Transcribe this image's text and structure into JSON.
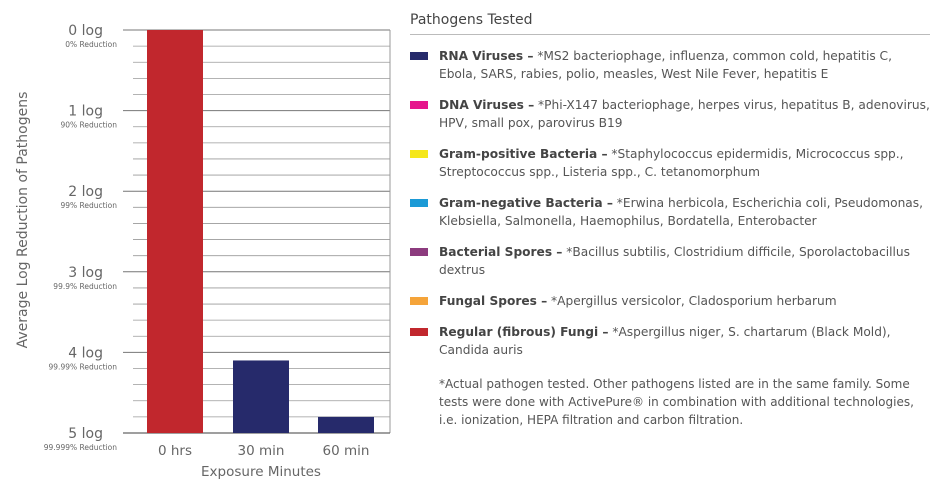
{
  "chart_data": {
    "type": "bar",
    "categories": [
      "0 hrs",
      "30 min",
      "60 min"
    ],
    "values": [
      0,
      4.1,
      4.8
    ],
    "bar_colors": [
      "#c1272d",
      "#262a6b",
      "#262a6b"
    ],
    "ylabel": "Average Log Reduction of Pathogens",
    "xlabel": "Exposure Minutes",
    "ylim": [
      0,
      5
    ],
    "y_inverted": true,
    "y_ticks": [
      {
        "value": 0,
        "label": "0 log",
        "sub": "0% Reduction"
      },
      {
        "value": 1,
        "label": "1 log",
        "sub": "90% Reduction"
      },
      {
        "value": 2,
        "label": "2 log",
        "sub": "99% Reduction"
      },
      {
        "value": 3,
        "label": "3 log",
        "sub": "99.9% Reduction"
      },
      {
        "value": 4,
        "label": "4 log",
        "sub": "99.99% Reduction"
      },
      {
        "value": 5,
        "label": "5 log",
        "sub": "99.999% Reduction"
      }
    ],
    "grid": true
  },
  "legend": {
    "title": "Pathogens Tested",
    "items": [
      {
        "name": "RNA Viruses –",
        "desc": " *MS2 bacteriophage, influenza, common cold, hepatitis C, Ebola, SARS, rabies, polio, measles, West Nile Fever, hepatitis E",
        "color": "#262a6b"
      },
      {
        "name": "DNA Viruses –",
        "desc": " *Phi-X147 bacteriophage, herpes virus, hepatitus B, adenovirus, HPV, small pox, parovirus B19",
        "color": "#e6168c"
      },
      {
        "name": "Gram-positive Bacteria –",
        "desc": " *Staphylococcus epidermidis, Micrococcus spp., Streptococcus spp., Listeria spp., C. tetanomorphum",
        "color": "#f5e71a"
      },
      {
        "name": "Gram-negative Bacteria –",
        "desc": " *Erwina herbicola, Escherichia coli, Pseudomonas, Klebsiella, Salmonella, Haemophilus, Bordatella, Enterobacter",
        "color": "#1b9ad6"
      },
      {
        "name": "Bacterial Spores –",
        "desc": " *Bacillus subtilis, Clostridium difficile, Sporolactobacillus dextrus",
        "color": "#8c3b7e"
      },
      {
        "name": "Fungal Spores –",
        "desc": " *Apergillus versicolor, Cladosporium herbarum",
        "color": "#f5a43a"
      },
      {
        "name": "Regular (fibrous) Fungi –",
        "desc": " *Aspergillus niger, S. chartarum (Black Mold), Candida auris",
        "color": "#c1272d"
      }
    ],
    "footnote": "*Actual pathogen tested. Other pathogens listed are in the same family. Some tests were done with ActivePure® in combination with additional technologies, i.e. ionization, HEPA filtration and carbon filtration."
  }
}
